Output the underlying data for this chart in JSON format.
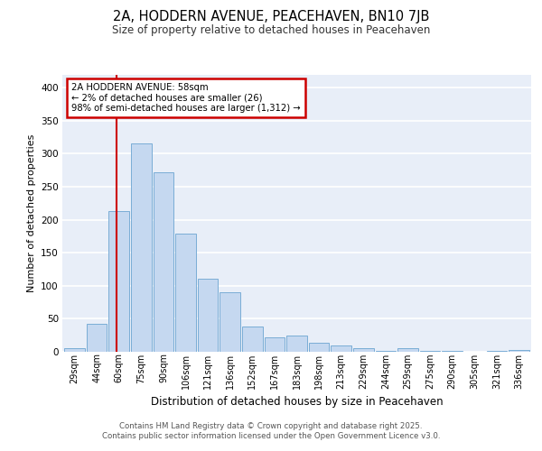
{
  "title": "2A, HODDERN AVENUE, PEACEHAVEN, BN10 7JB",
  "subtitle": "Size of property relative to detached houses in Peacehaven",
  "xlabel": "Distribution of detached houses by size in Peacehaven",
  "ylabel": "Number of detached properties",
  "bar_color": "#c5d8f0",
  "bar_edge_color": "#7aadd6",
  "background_color": "#e8eef8",
  "grid_color": "#ffffff",
  "bins": [
    "29sqm",
    "44sqm",
    "60sqm",
    "75sqm",
    "90sqm",
    "106sqm",
    "121sqm",
    "136sqm",
    "152sqm",
    "167sqm",
    "183sqm",
    "198sqm",
    "213sqm",
    "229sqm",
    "244sqm",
    "259sqm",
    "275sqm",
    "290sqm",
    "305sqm",
    "321sqm",
    "336sqm"
  ],
  "values": [
    5,
    43,
    213,
    315,
    272,
    179,
    110,
    90,
    38,
    22,
    25,
    14,
    10,
    5,
    1,
    5,
    1,
    1,
    0,
    1,
    3
  ],
  "vline_x_index": 1.87,
  "annotation_text": "2A HODDERN AVENUE: 58sqm\n← 2% of detached houses are smaller (26)\n98% of semi-detached houses are larger (1,312) →",
  "annotation_box_color": "#ffffff",
  "annotation_border_color": "#cc0000",
  "vline_color": "#cc0000",
  "ylim": [
    0,
    420
  ],
  "yticks": [
    0,
    50,
    100,
    150,
    200,
    250,
    300,
    350,
    400
  ],
  "footer_line1": "Contains HM Land Registry data © Crown copyright and database right 2025.",
  "footer_line2": "Contains public sector information licensed under the Open Government Licence v3.0."
}
